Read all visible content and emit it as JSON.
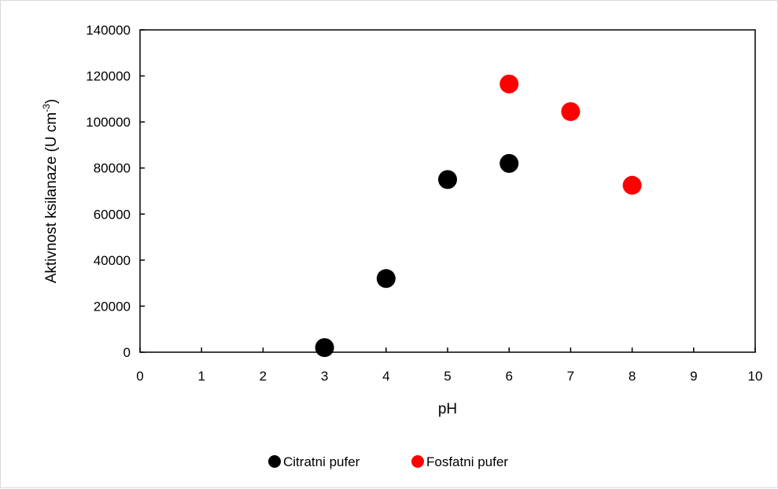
{
  "chart_data": {
    "type": "scatter",
    "title": "",
    "xlabel": "pH",
    "ylabel": "Aktivnost ksilanaze  (U cm",
    "ylabel_sup": "-3",
    "ylabel_close": ")",
    "xlim": [
      0,
      10
    ],
    "ylim": [
      0,
      140000
    ],
    "xticks": [
      0,
      1,
      2,
      3,
      4,
      5,
      6,
      7,
      8,
      9,
      10
    ],
    "yticks": [
      0,
      20000,
      40000,
      60000,
      80000,
      100000,
      120000,
      140000
    ],
    "grid": false,
    "legend_position": "bottom",
    "series": [
      {
        "name": "Citratni pufer",
        "color": "#000000",
        "points": [
          {
            "x": 3,
            "y": 2000
          },
          {
            "x": 4,
            "y": 32000
          },
          {
            "x": 5,
            "y": 75000
          },
          {
            "x": 6,
            "y": 82000
          }
        ]
      },
      {
        "name": "Fosfatni pufer",
        "color": "#ff0000",
        "points": [
          {
            "x": 6,
            "y": 116500
          },
          {
            "x": 7,
            "y": 104500
          },
          {
            "x": 8,
            "y": 72500
          }
        ]
      }
    ]
  }
}
